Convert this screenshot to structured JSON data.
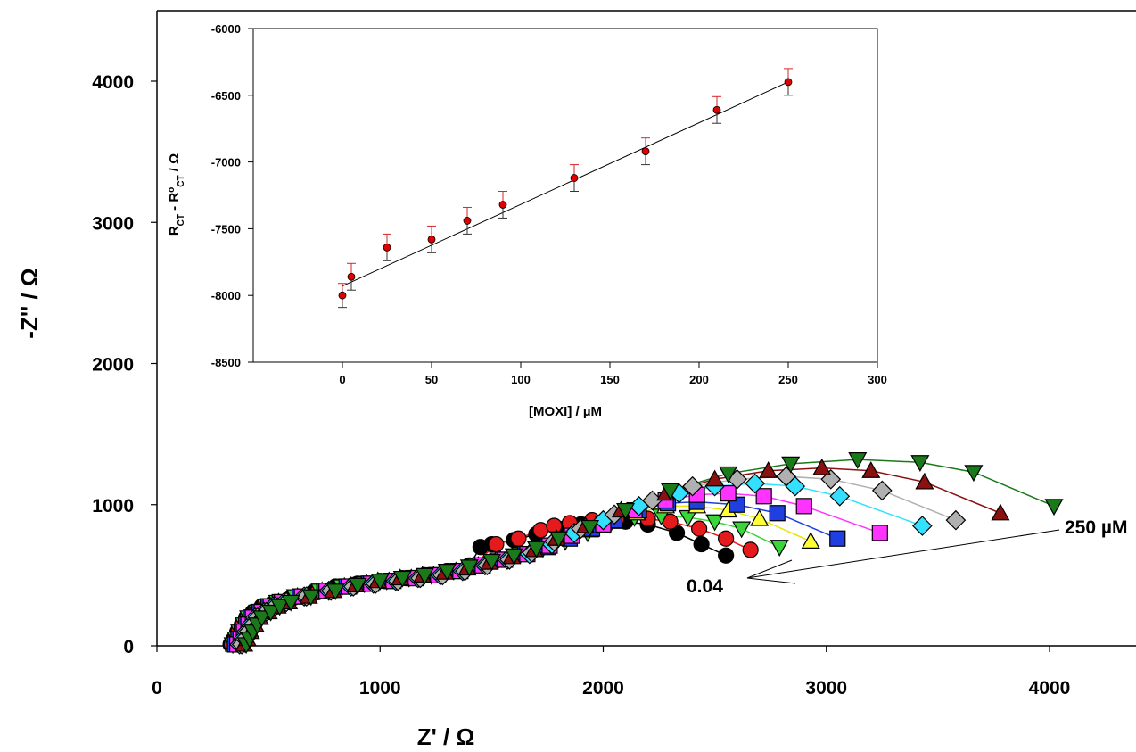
{
  "chart_data": [
    {
      "type": "scatter",
      "xlabel": "Z' / Ω",
      "ylabel": "-Z'' / Ω",
      "xlim": [
        0,
        4500
      ],
      "ylim": [
        0,
        4400
      ],
      "xticks": [
        0,
        1000,
        2000,
        3000,
        4000
      ],
      "yticks": [
        0,
        1000,
        2000,
        3000,
        4000
      ],
      "grid": false,
      "annotations": [
        {
          "text": "250 µM",
          "x": 4240,
          "y": 840
        },
        {
          "text": "0.04",
          "x": 2580,
          "y": 440
        }
      ],
      "series": [
        {
          "color": "#000000",
          "marker": "circle",
          "x": [
            330,
            345,
            360,
            380,
            400,
            430,
            470,
            520,
            600,
            700,
            800,
            900,
            1000,
            1100,
            1200,
            1300,
            1400,
            1450,
            1500,
            1600,
            1700,
            1800,
            1900,
            1980,
            2100,
            2200,
            2330,
            2440,
            2550
          ],
          "y": [
            10,
            50,
            100,
            150,
            200,
            240,
            280,
            300,
            340,
            380,
            420,
            440,
            460,
            480,
            500,
            530,
            570,
            700,
            720,
            750,
            790,
            830,
            860,
            870,
            880,
            860,
            800,
            720,
            640
          ]
        },
        {
          "color": "#e41a1c",
          "marker": "circle",
          "x": [
            335,
            350,
            365,
            385,
            405,
            440,
            480,
            530,
            610,
            720,
            820,
            920,
            1020,
            1120,
            1220,
            1320,
            1420,
            1520,
            1620,
            1720,
            1780,
            1850,
            1950,
            2060,
            2200,
            2300,
            2430,
            2550,
            2660
          ],
          "y": [
            10,
            50,
            100,
            150,
            200,
            240,
            280,
            300,
            340,
            380,
            420,
            440,
            460,
            480,
            500,
            530,
            570,
            720,
            760,
            820,
            850,
            870,
            890,
            900,
            900,
            880,
            830,
            760,
            680
          ]
        },
        {
          "color": "#39d639",
          "marker": "triangle-down",
          "x": [
            340,
            355,
            370,
            390,
            410,
            450,
            490,
            540,
            620,
            730,
            830,
            930,
            1030,
            1130,
            1230,
            1330,
            1430,
            1530,
            1630,
            1730,
            1830,
            1930,
            2030,
            2140,
            2260,
            2380,
            2500,
            2620,
            2790
          ],
          "y": [
            10,
            50,
            100,
            150,
            200,
            240,
            280,
            310,
            350,
            390,
            420,
            440,
            460,
            480,
            500,
            530,
            570,
            610,
            650,
            690,
            740,
            800,
            860,
            910,
            920,
            910,
            880,
            830,
            700
          ]
        },
        {
          "color": "#ffff33",
          "marker": "triangle-up",
          "x": [
            345,
            360,
            375,
            395,
            415,
            455,
            495,
            545,
            630,
            740,
            840,
            940,
            1040,
            1140,
            1240,
            1340,
            1440,
            1540,
            1640,
            1740,
            1840,
            1940,
            2040,
            2150,
            2280,
            2420,
            2560,
            2700,
            2930
          ],
          "y": [
            10,
            50,
            100,
            150,
            200,
            240,
            280,
            310,
            350,
            390,
            420,
            440,
            460,
            480,
            500,
            530,
            570,
            610,
            650,
            700,
            760,
            820,
            880,
            940,
            990,
            990,
            960,
            900,
            740
          ]
        },
        {
          "color": "#1f3fe0",
          "marker": "square",
          "x": [
            350,
            365,
            380,
            400,
            420,
            460,
            500,
            550,
            640,
            750,
            850,
            950,
            1050,
            1150,
            1250,
            1350,
            1450,
            1550,
            1650,
            1750,
            1850,
            1950,
            2050,
            2160,
            2290,
            2420,
            2600,
            2780,
            3050
          ],
          "y": [
            10,
            50,
            100,
            150,
            200,
            240,
            280,
            310,
            350,
            390,
            420,
            440,
            460,
            480,
            500,
            530,
            570,
            610,
            650,
            700,
            760,
            830,
            890,
            960,
            1010,
            1020,
            1000,
            940,
            760
          ]
        },
        {
          "color": "#ff33ff",
          "marker": "square",
          "x": [
            360,
            375,
            390,
            410,
            430,
            470,
            510,
            560,
            650,
            760,
            860,
            960,
            1060,
            1160,
            1260,
            1360,
            1460,
            1560,
            1660,
            1760,
            1860,
            2000,
            2140,
            2280,
            2420,
            2560,
            2720,
            2900,
            3240
          ],
          "y": [
            10,
            50,
            100,
            150,
            200,
            240,
            280,
            310,
            350,
            390,
            420,
            440,
            460,
            480,
            500,
            530,
            570,
            610,
            650,
            710,
            780,
            860,
            960,
            1030,
            1070,
            1080,
            1060,
            990,
            800
          ]
        },
        {
          "color": "#33e0ff",
          "marker": "diamond",
          "x": [
            370,
            385,
            400,
            420,
            440,
            480,
            520,
            570,
            660,
            770,
            870,
            970,
            1070,
            1170,
            1270,
            1370,
            1470,
            1570,
            1670,
            1770,
            1870,
            2000,
            2160,
            2340,
            2500,
            2680,
            2860,
            3060,
            3430
          ],
          "y": [
            10,
            50,
            100,
            150,
            200,
            240,
            280,
            310,
            350,
            390,
            420,
            440,
            460,
            480,
            500,
            530,
            570,
            610,
            650,
            720,
            800,
            890,
            990,
            1080,
            1130,
            1150,
            1130,
            1060,
            850
          ]
        },
        {
          "color": "#b0b0b0",
          "marker": "diamond",
          "x": [
            380,
            395,
            410,
            430,
            450,
            490,
            530,
            580,
            670,
            780,
            880,
            980,
            1080,
            1180,
            1280,
            1380,
            1480,
            1580,
            1680,
            1780,
            1900,
            2050,
            2220,
            2400,
            2600,
            2820,
            3020,
            3250,
            3580
          ],
          "y": [
            10,
            50,
            100,
            150,
            200,
            240,
            280,
            310,
            350,
            390,
            420,
            440,
            460,
            480,
            500,
            530,
            570,
            610,
            660,
            740,
            830,
            930,
            1030,
            1130,
            1180,
            1200,
            1180,
            1100,
            890
          ]
        },
        {
          "color": "#8b1010",
          "marker": "triangle-up",
          "x": [
            390,
            405,
            420,
            440,
            460,
            500,
            540,
            590,
            680,
            790,
            890,
            990,
            1090,
            1190,
            1290,
            1390,
            1490,
            1590,
            1690,
            1790,
            1920,
            2080,
            2280,
            2500,
            2740,
            2980,
            3200,
            3440,
            3780
          ],
          "y": [
            10,
            50,
            100,
            150,
            200,
            240,
            280,
            310,
            350,
            390,
            430,
            460,
            480,
            500,
            520,
            550,
            590,
            630,
            680,
            760,
            850,
            960,
            1080,
            1180,
            1240,
            1260,
            1240,
            1160,
            940
          ]
        },
        {
          "color": "#1a7a1a",
          "marker": "triangle-down",
          "x": [
            400,
            415,
            430,
            450,
            470,
            510,
            550,
            600,
            690,
            800,
            900,
            1000,
            1100,
            1200,
            1300,
            1400,
            1500,
            1600,
            1700,
            1800,
            1940,
            2100,
            2300,
            2560,
            2840,
            3140,
            3420,
            3660,
            4020
          ],
          "y": [
            10,
            50,
            100,
            150,
            200,
            240,
            280,
            310,
            350,
            390,
            430,
            460,
            480,
            500,
            530,
            560,
            600,
            640,
            690,
            760,
            840,
            960,
            1100,
            1220,
            1290,
            1320,
            1300,
            1230,
            990
          ]
        }
      ]
    },
    {
      "type": "scatter",
      "xlabel": "[MOXI] / µM",
      "ylabel": "R_CT - R°_CT / Ω",
      "ylabel_parts": {
        "r1": "R",
        "sub1": "CT",
        "mid": " - R",
        "sup": "o",
        "sub2": "CT",
        "tail": " / Ω"
      },
      "xlim": [
        -50,
        300
      ],
      "ylim": [
        -8500,
        -6000
      ],
      "xticks": [
        0,
        50,
        100,
        150,
        200,
        250,
        300
      ],
      "yticks": [
        -8500,
        -8000,
        -7500,
        -7000,
        -6500,
        -6000
      ],
      "grid": false,
      "fit_line": {
        "x": [
          0,
          250
        ],
        "y": [
          -7930,
          -6400
        ]
      },
      "points": {
        "x": [
          0,
          5,
          25,
          50,
          70,
          90,
          130,
          170,
          210,
          250
        ],
        "y": [
          -8000,
          -7860,
          -7640,
          -7580,
          -7440,
          -7320,
          -7120,
          -6920,
          -6610,
          -6400
        ],
        "err": [
          90,
          100,
          100,
          100,
          100,
          100,
          100,
          100,
          100,
          100
        ]
      }
    }
  ]
}
